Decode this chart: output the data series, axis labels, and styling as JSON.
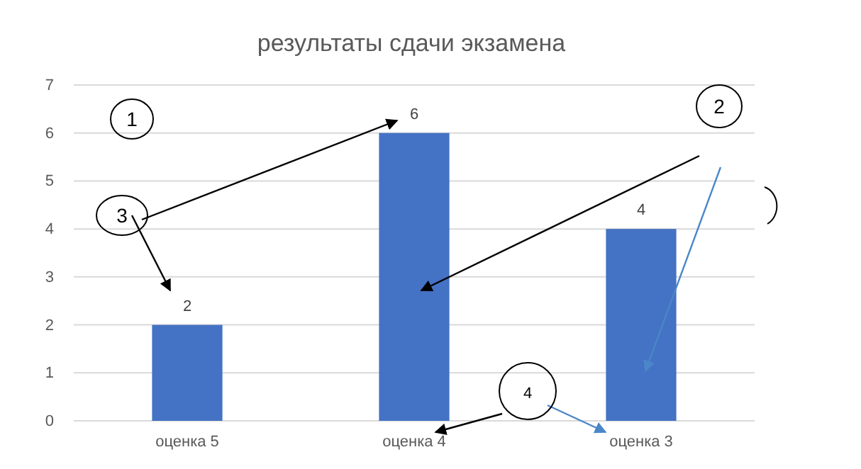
{
  "chart_data": {
    "type": "bar",
    "title": "результаты сдачи экзамена",
    "categories": [
      "оценка  5",
      "оценка  4",
      "оценка  3"
    ],
    "values": [
      2,
      6,
      4
    ],
    "color": "#4472c4",
    "data_labels": true,
    "ylim": [
      0,
      7
    ],
    "yticks": [
      0,
      1,
      2,
      3,
      4,
      5,
      6,
      7
    ],
    "grid": "y",
    "annotations": [
      "1",
      "2",
      "3",
      "4"
    ]
  }
}
